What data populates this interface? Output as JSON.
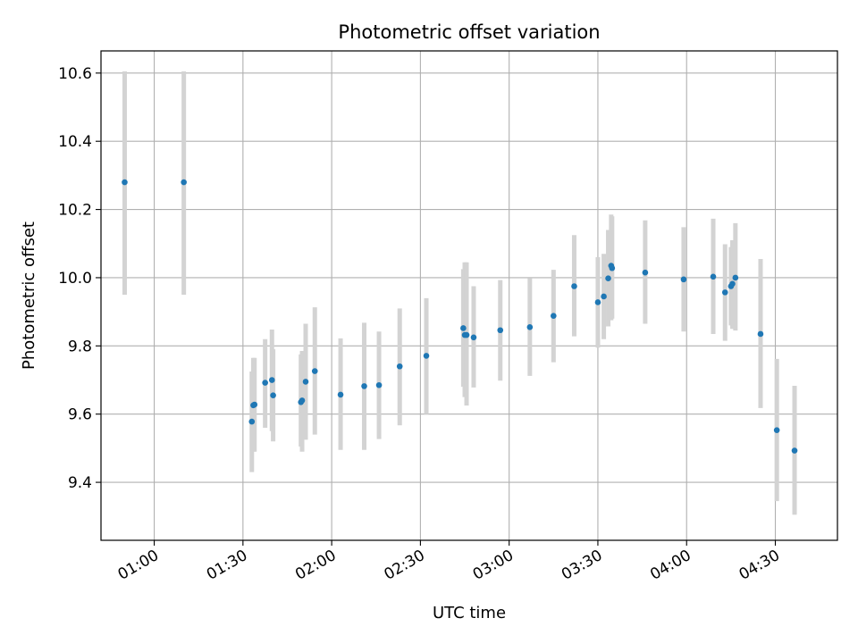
{
  "chart_data": {
    "type": "scatter",
    "title": "Photometric offset variation",
    "xlabel": "UTC time",
    "ylabel": "Photometric offset",
    "xlim": [
      "00:42",
      "04:51"
    ],
    "ylim": [
      9.23,
      10.665
    ],
    "grid": true,
    "x_ticks": [
      "01:00",
      "01:30",
      "02:00",
      "02:30",
      "03:00",
      "03:30",
      "04:00",
      "04:30"
    ],
    "y_ticks": [
      "9.4",
      "9.6",
      "9.8",
      "10.0",
      "10.2",
      "10.4",
      "10.6"
    ],
    "colors": {
      "point": "#1f77b4",
      "errorbar": "#d3d3d3",
      "grid": "#b0b0b0"
    },
    "points": [
      {
        "x": "00:50",
        "y": 10.28,
        "ylo": 9.95,
        "yhi": 10.605
      },
      {
        "x": "01:10",
        "y": 10.28,
        "ylo": 9.95,
        "yhi": 10.605
      },
      {
        "x": "01:33",
        "y": 9.578,
        "ylo": 9.43,
        "yhi": 9.725
      },
      {
        "x": "01:33.5",
        "y": 9.626,
        "ylo": 9.49,
        "yhi": 9.765
      },
      {
        "x": "01:33.9",
        "y": 9.628,
        "ylo": 9.49,
        "yhi": 9.765
      },
      {
        "x": "01:37.5",
        "y": 9.692,
        "ylo": 9.56,
        "yhi": 9.82
      },
      {
        "x": "01:39.8",
        "y": 9.7,
        "ylo": 9.55,
        "yhi": 9.848
      },
      {
        "x": "01:40.2",
        "y": 9.655,
        "ylo": 9.52,
        "yhi": 9.79
      },
      {
        "x": "01:49.6",
        "y": 9.635,
        "ylo": 9.505,
        "yhi": 9.775
      },
      {
        "x": "01:50.0",
        "y": 9.64,
        "ylo": 9.49,
        "yhi": 9.785
      },
      {
        "x": "01:51.2",
        "y": 9.695,
        "ylo": 9.525,
        "yhi": 9.865
      },
      {
        "x": "01:54.3",
        "y": 9.726,
        "ylo": 9.54,
        "yhi": 9.913
      },
      {
        "x": "02:03",
        "y": 9.657,
        "ylo": 9.495,
        "yhi": 9.822
      },
      {
        "x": "02:11",
        "y": 9.682,
        "ylo": 9.495,
        "yhi": 9.868
      },
      {
        "x": "02:16",
        "y": 9.685,
        "ylo": 9.527,
        "yhi": 9.842
      },
      {
        "x": "02:23",
        "y": 9.74,
        "ylo": 9.567,
        "yhi": 9.91
      },
      {
        "x": "02:32",
        "y": 9.771,
        "ylo": 9.6,
        "yhi": 9.94
      },
      {
        "x": "02:44.5",
        "y": 9.852,
        "ylo": 9.68,
        "yhi": 10.025
      },
      {
        "x": "02:45",
        "y": 9.832,
        "ylo": 9.65,
        "yhi": 10.045
      },
      {
        "x": "02:45.6",
        "y": 9.832,
        "ylo": 9.625,
        "yhi": 10.045
      },
      {
        "x": "02:48",
        "y": 9.825,
        "ylo": 9.678,
        "yhi": 9.975
      },
      {
        "x": "02:57",
        "y": 9.846,
        "ylo": 9.698,
        "yhi": 9.993
      },
      {
        "x": "03:07",
        "y": 9.855,
        "ylo": 9.712,
        "yhi": 9.998
      },
      {
        "x": "03:15",
        "y": 9.888,
        "ylo": 9.752,
        "yhi": 10.023
      },
      {
        "x": "03:22",
        "y": 9.975,
        "ylo": 9.828,
        "yhi": 10.125
      },
      {
        "x": "03:30",
        "y": 9.928,
        "ylo": 9.795,
        "yhi": 10.06
      },
      {
        "x": "03:32",
        "y": 9.945,
        "ylo": 9.82,
        "yhi": 10.07
      },
      {
        "x": "03:33.5",
        "y": 9.998,
        "ylo": 9.857,
        "yhi": 10.14
      },
      {
        "x": "03:34.5",
        "y": 10.035,
        "ylo": 9.875,
        "yhi": 10.185
      },
      {
        "x": "03:34.8",
        "y": 10.028,
        "ylo": 9.88,
        "yhi": 10.18
      },
      {
        "x": "03:46",
        "y": 10.015,
        "ylo": 9.865,
        "yhi": 10.168
      },
      {
        "x": "03:59",
        "y": 9.995,
        "ylo": 9.842,
        "yhi": 10.148
      },
      {
        "x": "04:09",
        "y": 10.003,
        "ylo": 9.835,
        "yhi": 10.173
      },
      {
        "x": "04:13",
        "y": 9.957,
        "ylo": 9.815,
        "yhi": 10.098
      },
      {
        "x": "04:15",
        "y": 9.975,
        "ylo": 9.86,
        "yhi": 10.09
      },
      {
        "x": "04:15.5",
        "y": 9.982,
        "ylo": 9.85,
        "yhi": 10.11
      },
      {
        "x": "04:16.5",
        "y": 10.0,
        "ylo": 9.845,
        "yhi": 10.16
      },
      {
        "x": "04:25",
        "y": 9.835,
        "ylo": 9.618,
        "yhi": 10.055
      },
      {
        "x": "04:30.5",
        "y": 9.553,
        "ylo": 9.345,
        "yhi": 9.762
      },
      {
        "x": "04:36.5",
        "y": 9.493,
        "ylo": 9.305,
        "yhi": 9.683
      }
    ]
  }
}
